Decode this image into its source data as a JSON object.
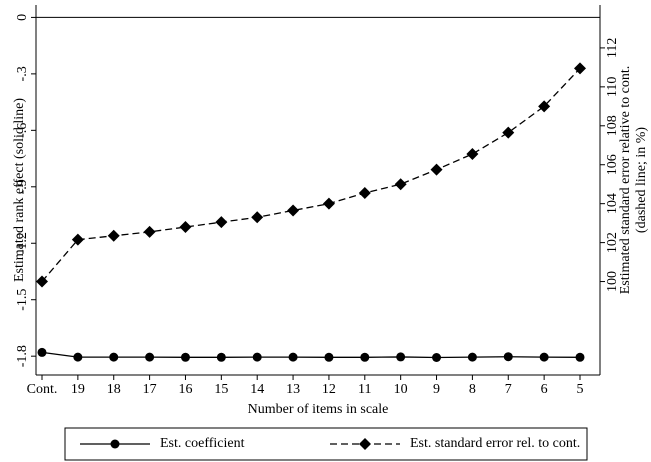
{
  "chart_data": {
    "type": "line",
    "x_label": "Number of items in scale",
    "y_label": "Estimated rank effect (solid line)",
    "y2_label": [
      "Estimated standard error relative to cont.",
      "(dashed line; in %)"
    ],
    "categories": [
      "Cont.",
      "19",
      "18",
      "17",
      "16",
      "15",
      "14",
      "13",
      "12",
      "11",
      "10",
      "9",
      "8",
      "7",
      "6",
      "5"
    ],
    "series": [
      {
        "name": "Est. coefficient",
        "color": "#000000",
        "dash": "solid",
        "marker": "circle",
        "values": [
          -1.78,
          -1.805,
          -1.805,
          -1.805,
          -1.806,
          -1.806,
          -1.805,
          -1.805,
          -1.806,
          -1.806,
          -1.804,
          -1.807,
          -1.805,
          -1.803,
          -1.805,
          -1.806
        ]
      },
      {
        "name": "Est. standard error rel. to cont.",
        "color": "#000000",
        "dash": "dashed",
        "marker": "diamond",
        "axis": "y2",
        "values": [
          100.0,
          102.15,
          102.35,
          102.55,
          102.8,
          103.05,
          103.3,
          103.65,
          104.0,
          104.55,
          105.0,
          105.75,
          106.55,
          107.65,
          109.0,
          110.95
        ]
      }
    ],
    "ylim": [
      -1.9,
      0.05
    ],
    "yticks": [
      0,
      {
        "value": -0.3,
        "label": "-.3"
      },
      {
        "value": -0.6,
        "label": "-.6"
      },
      {
        "value": -0.9,
        "label": "-.9"
      },
      {
        "value": -1.2,
        "label": "-1.2"
      },
      {
        "value": -1.5,
        "label": "-1.5"
      },
      {
        "value": -1.8,
        "label": "-1.8"
      }
    ],
    "y2lim": [
      95.2,
      114.05
    ],
    "y2ticks": [
      100,
      102,
      104,
      106,
      108,
      110,
      112
    ],
    "reference_line": 0,
    "legend": "bottom"
  }
}
